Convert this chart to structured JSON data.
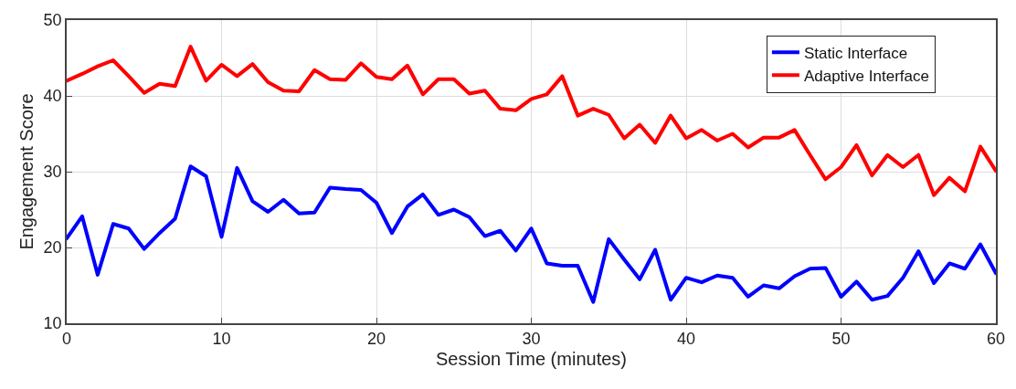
{
  "chart_data": {
    "type": "line",
    "xlabel": "Session Time (minutes)",
    "ylabel": "Engagement Score",
    "x": [
      0,
      1,
      2,
      3,
      4,
      5,
      6,
      7,
      8,
      9,
      10,
      11,
      12,
      13,
      14,
      15,
      16,
      17,
      18,
      19,
      20,
      21,
      22,
      23,
      24,
      25,
      26,
      27,
      28,
      29,
      30,
      31,
      32,
      33,
      34,
      35,
      36,
      37,
      38,
      39,
      40,
      41,
      42,
      43,
      44,
      45,
      46,
      47,
      48,
      49,
      50,
      51,
      52,
      53,
      54,
      55,
      56,
      57,
      58,
      59,
      60
    ],
    "series": [
      {
        "name": "Static Interface",
        "color": "#0000ff",
        "values": [
          21.2,
          24.1,
          16.4,
          23.1,
          22.5,
          19.8,
          21.9,
          23.8,
          30.7,
          29.4,
          21.4,
          30.5,
          26.1,
          24.7,
          26.3,
          24.5,
          24.6,
          27.9,
          27.7,
          27.6,
          25.9,
          21.9,
          25.4,
          27.0,
          24.3,
          25.0,
          24.0,
          21.5,
          22.2,
          19.6,
          22.5,
          17.9,
          17.6,
          17.6,
          12.8,
          21.1,
          18.4,
          15.8,
          19.7,
          13.1,
          16.0,
          15.4,
          16.3,
          16.0,
          13.5,
          15.0,
          14.6,
          16.2,
          17.2,
          17.3,
          13.5,
          15.5,
          13.1,
          13.6,
          16.0,
          19.5,
          15.3,
          17.9,
          17.2,
          20.4,
          16.6
        ]
      },
      {
        "name": "Adaptive Interface",
        "color": "#ff0000",
        "values": [
          42.0,
          42.9,
          43.9,
          44.7,
          42.6,
          40.4,
          41.6,
          41.3,
          46.5,
          42.0,
          44.1,
          42.6,
          44.2,
          41.8,
          40.7,
          40.6,
          43.4,
          42.2,
          42.1,
          44.3,
          42.5,
          42.2,
          44.0,
          40.2,
          42.2,
          42.2,
          40.3,
          40.7,
          38.3,
          38.1,
          39.6,
          40.2,
          42.6,
          37.4,
          38.3,
          37.5,
          34.4,
          36.2,
          33.8,
          37.4,
          34.4,
          35.5,
          34.1,
          35.0,
          33.2,
          34.5,
          34.5,
          35.5,
          32.2,
          29.0,
          30.6,
          33.5,
          29.5,
          32.2,
          30.6,
          32.2,
          26.9,
          29.2,
          27.4,
          33.3,
          30.1
        ]
      }
    ],
    "xlim": [
      0,
      60
    ],
    "xticks": [
      0,
      10,
      20,
      30,
      40,
      50,
      60
    ],
    "ylim": [
      10,
      50
    ],
    "yticks": [
      10,
      20,
      30,
      40,
      50
    ],
    "grid": true,
    "legend": "top right",
    "marker": "none",
    "line_style": "solid"
  }
}
